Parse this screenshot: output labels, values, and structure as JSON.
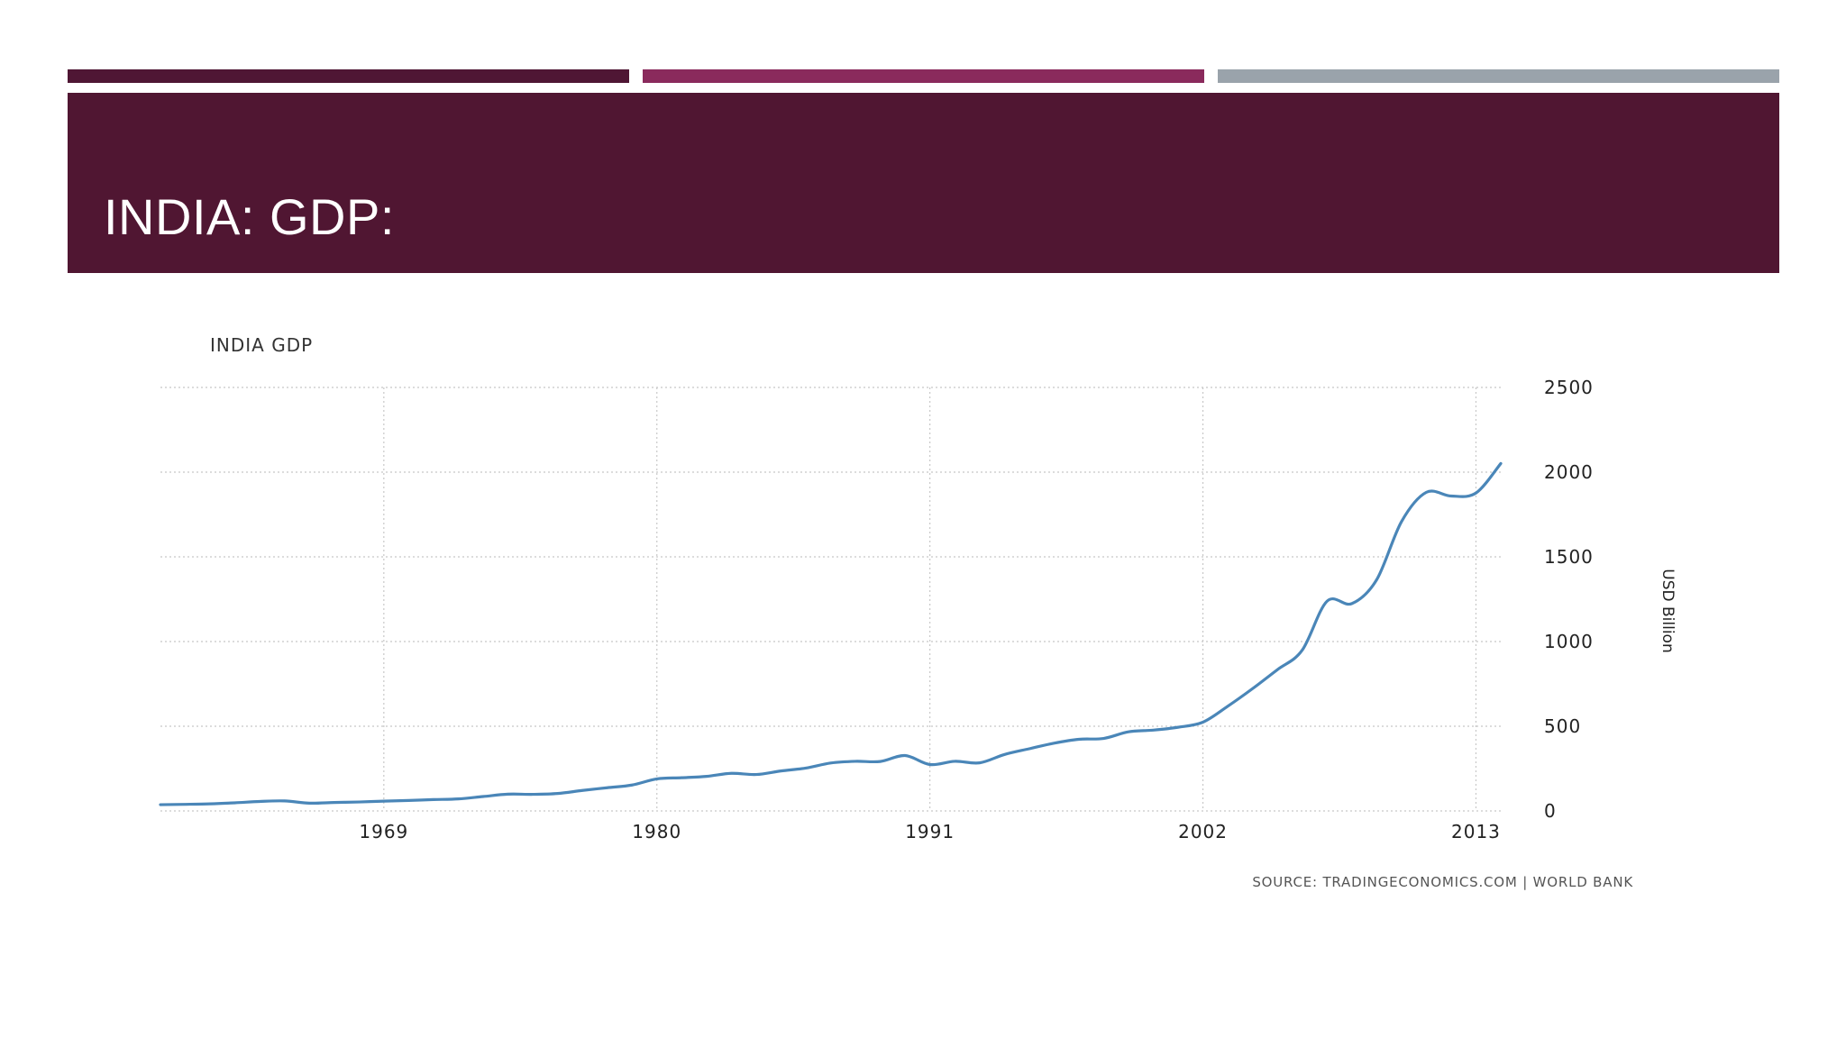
{
  "slide": {
    "title": "INDIA: GDP:",
    "accent_colors": [
      "#4F1634",
      "#8A2A5C",
      "#9AA3AB"
    ],
    "band_color": "#501632"
  },
  "chart_data": {
    "type": "line",
    "title": "INDIA GDP",
    "xlabel": "",
    "ylabel": "USD Billion",
    "xlim": [
      1960,
      2014
    ],
    "ylim": [
      0,
      2500
    ],
    "x_ticks": [
      1969,
      1980,
      1991,
      2002,
      2013
    ],
    "y_ticks": [
      0,
      500,
      1000,
      1500,
      2000,
      2500
    ],
    "grid": true,
    "y_axis_side": "right",
    "line_color": "#4A86B8",
    "series": [
      {
        "x": [
          1960,
          1961,
          1962,
          1963,
          1964,
          1965,
          1966,
          1967,
          1968,
          1969,
          1970,
          1971,
          1972,
          1973,
          1974,
          1975,
          1976,
          1977,
          1978,
          1979,
          1980,
          1981,
          1982,
          1983,
          1984,
          1985,
          1986,
          1987,
          1988,
          1989,
          1990,
          1991,
          1992,
          1993,
          1994,
          1995,
          1996,
          1997,
          1998,
          1999,
          2000,
          2001,
          2002,
          2003,
          2004,
          2005,
          2006,
          2007,
          2008,
          2009,
          2010,
          2011,
          2012,
          2013,
          2014
        ],
        "values": [
          37,
          39,
          42,
          48,
          56,
          59,
          46,
          50,
          53,
          58,
          62,
          67,
          71,
          85,
          99,
          98,
          103,
          121,
          137,
          153,
          189,
          196,
          204,
          222,
          215,
          236,
          253,
          283,
          293,
          292,
          327,
          274,
          293,
          284,
          333,
          367,
          400,
          423,
          428,
          467,
          477,
          494,
          524,
          618,
          722,
          834,
          949,
          1238,
          1224,
          1365,
          1708,
          1881,
          1859,
          1877,
          2051
        ]
      }
    ],
    "source_note": "SOURCE: TRADINGECONOMICS.COM  |  WORLD BANK"
  }
}
